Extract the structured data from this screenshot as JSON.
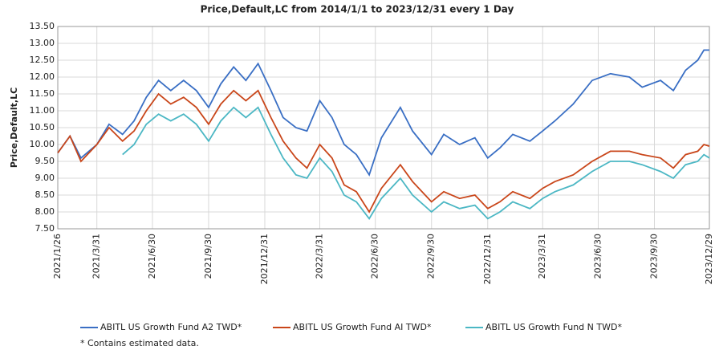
{
  "chart_data": {
    "type": "line",
    "title": "Price,Default,LC from 2014/1/1 to 2023/12/31 every 1 Day",
    "y_label": "Price,Default,LC",
    "footnote": "*  Contains estimated data.",
    "x": [
      "2021/1/26",
      "2021/2/15",
      "2021/3/5",
      "2021/3/31",
      "2021/4/20",
      "2021/5/12",
      "2021/5/31",
      "2021/6/20",
      "2021/7/10",
      "2021/7/30",
      "2021/8/20",
      "2021/9/10",
      "2021/9/30",
      "2021/10/20",
      "2021/11/10",
      "2021/11/30",
      "2021/12/20",
      "2022/1/10",
      "2022/1/30",
      "2022/2/20",
      "2022/3/10",
      "2022/3/31",
      "2022/4/20",
      "2022/5/10",
      "2022/5/30",
      "2022/6/20",
      "2022/7/10",
      "2022/8/10",
      "2022/8/30",
      "2022/9/30",
      "2022/10/20",
      "2022/11/15",
      "2022/12/10",
      "2022/12/31",
      "2023/1/20",
      "2023/2/10",
      "2023/3/10",
      "2023/3/31",
      "2023/4/20",
      "2023/5/20",
      "2023/6/20",
      "2023/7/20",
      "2023/8/20",
      "2023/9/10",
      "2023/10/10",
      "2023/10/31",
      "2023/11/20",
      "2023/12/10",
      "2023/12/20",
      "2023/12/29"
    ],
    "series": [
      {
        "name": "ABITL US Growth Fund A2 TWD*",
        "color": "#3a6fc4",
        "values": [
          9.75,
          10.25,
          9.6,
          10.0,
          10.6,
          10.3,
          10.7,
          11.4,
          11.9,
          11.6,
          11.9,
          11.6,
          11.1,
          11.8,
          12.3,
          11.9,
          12.4,
          11.6,
          10.8,
          10.5,
          10.4,
          11.3,
          10.8,
          10.0,
          9.7,
          9.1,
          10.2,
          11.1,
          10.4,
          9.7,
          10.3,
          10.0,
          10.2,
          9.6,
          9.9,
          10.3,
          10.1,
          10.4,
          10.7,
          11.2,
          11.9,
          12.1,
          12.0,
          11.7,
          11.9,
          11.6,
          12.2,
          12.5,
          12.8,
          12.8
        ]
      },
      {
        "name": "ABITL US Growth Fund AI TWD*",
        "color": "#c9461a",
        "values": [
          9.75,
          10.25,
          9.5,
          10.0,
          10.5,
          10.1,
          10.4,
          11.0,
          11.5,
          11.2,
          11.4,
          11.1,
          10.6,
          11.2,
          11.6,
          11.3,
          11.6,
          10.8,
          10.1,
          9.6,
          9.3,
          10.0,
          9.6,
          8.8,
          8.6,
          8.0,
          8.7,
          9.4,
          8.9,
          8.3,
          8.6,
          8.4,
          8.5,
          8.1,
          8.3,
          8.6,
          8.4,
          8.7,
          8.9,
          9.1,
          9.5,
          9.8,
          9.8,
          9.7,
          9.6,
          9.3,
          9.7,
          9.8,
          10.0,
          9.95
        ]
      },
      {
        "name": "ABITL US Growth Fund N TWD*",
        "color": "#4bb7c4",
        "values": [
          null,
          null,
          null,
          null,
          null,
          9.7,
          10.0,
          10.6,
          10.9,
          10.7,
          10.9,
          10.6,
          10.1,
          10.7,
          11.1,
          10.8,
          11.1,
          10.3,
          9.6,
          9.1,
          9.0,
          9.6,
          9.2,
          8.5,
          8.3,
          7.8,
          8.4,
          9.0,
          8.5,
          8.0,
          8.3,
          8.1,
          8.2,
          7.8,
          8.0,
          8.3,
          8.1,
          8.4,
          8.6,
          8.8,
          9.2,
          9.5,
          9.5,
          9.4,
          9.2,
          9.0,
          9.4,
          9.5,
          9.7,
          9.6
        ]
      }
    ],
    "xlim": [
      "2021/1/26",
      "2023/12/29"
    ],
    "xticks": [
      "2021/1/26",
      "2021/3/31",
      "2021/6/30",
      "2021/9/30",
      "2021/12/31",
      "2022/3/31",
      "2022/6/30",
      "2022/9/30",
      "2022/12/31",
      "2023/3/31",
      "2023/6/30",
      "2023/9/30",
      "2023/12/29"
    ],
    "ylim": [
      7.5,
      13.5
    ],
    "yticks": [
      {
        "value": 7.5,
        "label": "7.50"
      },
      {
        "value": 8,
        "label": "8.00"
      },
      {
        "value": 8.5,
        "label": "8.50"
      },
      {
        "value": 9,
        "label": "9.00"
      },
      {
        "value": 9.5,
        "label": "9.50"
      },
      {
        "value": 10,
        "label": "10.00"
      },
      {
        "value": 10.5,
        "label": "10.50"
      },
      {
        "value": 11,
        "label": "11.00"
      },
      {
        "value": 11.5,
        "label": "11.50"
      },
      {
        "value": 12,
        "label": "12.00"
      },
      {
        "value": 12.5,
        "label": "12.50"
      },
      {
        "value": 13,
        "label": "13.00"
      },
      {
        "value": 13.5,
        "label": "13.50"
      }
    ],
    "grid": true,
    "legend": "bottom"
  }
}
